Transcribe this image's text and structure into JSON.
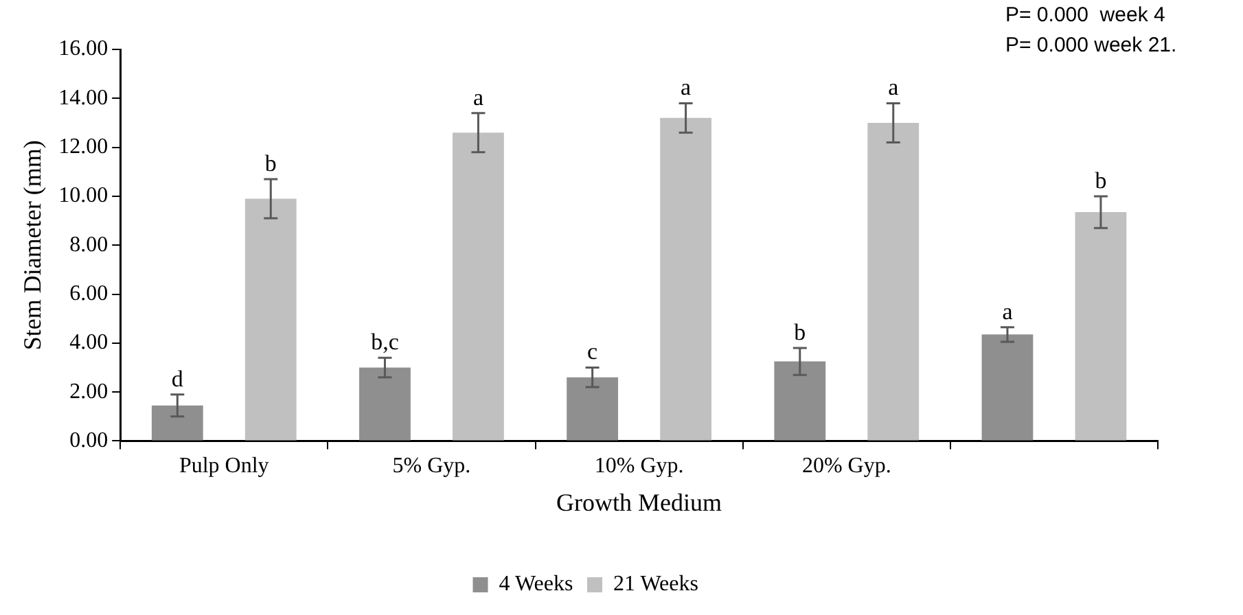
{
  "chart_data": {
    "type": "bar",
    "xlabel": "Growth Medium",
    "ylabel": "Stem Diameter (mm)",
    "annotations": [
      "P= 0.000  week 4",
      "P= 0.000 week 21."
    ],
    "categories": [
      "Pulp Only",
      "5% Gyp.",
      "10% Gyp.",
      "20% Gyp.",
      null
    ],
    "series": [
      {
        "name": "4 Weeks",
        "color": "#8f8f8f",
        "values": [
          1.45,
          3.0,
          2.6,
          3.25,
          4.35
        ],
        "errors": [
          0.45,
          0.4,
          0.4,
          0.55,
          0.3
        ],
        "value_labels": [
          "d",
          "b,c",
          "c",
          "b",
          "a"
        ]
      },
      {
        "name": "21 Weeks",
        "color": "#c0c0c0",
        "values": [
          9.9,
          12.6,
          13.2,
          13.0,
          9.35
        ],
        "errors": [
          0.8,
          0.8,
          0.6,
          0.8,
          0.65
        ],
        "value_labels": [
          "b",
          "a",
          "a",
          "a",
          "b"
        ]
      }
    ],
    "ylim": [
      0,
      16
    ],
    "yticks": [
      {
        "value": 0,
        "label": "0.00"
      },
      {
        "value": 2,
        "label": "2.00"
      },
      {
        "value": 4,
        "label": "4.00"
      },
      {
        "value": 6,
        "label": "6.00"
      },
      {
        "value": 8,
        "label": "8.00"
      },
      {
        "value": 10,
        "label": "10.00"
      },
      {
        "value": 12,
        "label": "12.00"
      },
      {
        "value": 14,
        "label": "14.00"
      },
      {
        "value": 16,
        "label": "16.00"
      }
    ],
    "legend": "bottom"
  }
}
